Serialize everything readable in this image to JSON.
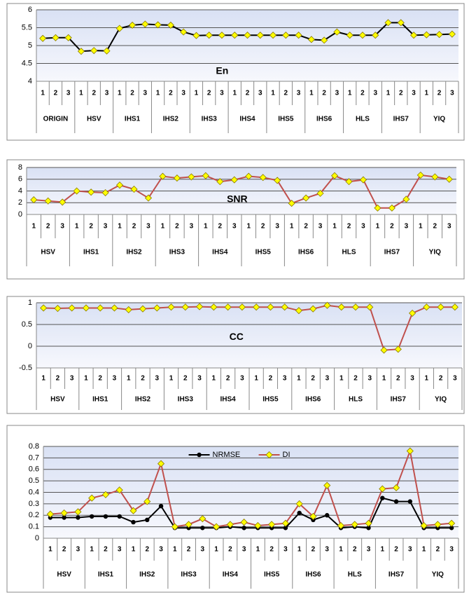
{
  "chart_data": [
    {
      "type": "line",
      "label": "En",
      "categories": [
        "1",
        "2",
        "3",
        "1",
        "2",
        "3",
        "1",
        "2",
        "3",
        "1",
        "2",
        "3",
        "1",
        "2",
        "3",
        "1",
        "2",
        "3",
        "1",
        "2",
        "3",
        "1",
        "2",
        "3",
        "1",
        "2",
        "3",
        "1",
        "2",
        "3",
        "1",
        "2",
        "3"
      ],
      "groups": [
        "ORIGIN",
        "HSV",
        "IHS1",
        "IHS2",
        "IHS3",
        "IHS4",
        "IHS5",
        "IHS6",
        "HLS",
        "IHS7",
        "YIQ"
      ],
      "values": [
        5.2,
        5.22,
        5.22,
        4.84,
        4.86,
        4.85,
        5.48,
        5.57,
        5.6,
        5.58,
        5.57,
        5.38,
        5.28,
        5.29,
        5.29,
        5.29,
        5.29,
        5.29,
        5.29,
        5.29,
        5.29,
        5.17,
        5.15,
        5.38,
        5.29,
        5.29,
        5.29,
        5.64,
        5.64,
        5.29,
        5.3,
        5.31,
        5.32
      ],
      "color": "#000000",
      "marker": "diamond",
      "marker_color": "#ffff00",
      "ylim": [
        4,
        6
      ],
      "yticks": [
        4,
        4.5,
        5,
        5.5,
        6
      ],
      "grid": true
    },
    {
      "type": "line",
      "label": "SNR",
      "categories": [
        "1",
        "2",
        "3",
        "1",
        "2",
        "3",
        "1",
        "2",
        "3",
        "1",
        "2",
        "3",
        "1",
        "2",
        "3",
        "1",
        "2",
        "3",
        "1",
        "2",
        "3",
        "1",
        "2",
        "3",
        "1",
        "2",
        "3",
        "1",
        "2",
        "3"
      ],
      "groups": [
        "HSV",
        "IHS1",
        "IHS2",
        "IHS3",
        "IHS4",
        "IHS5",
        "IHS6",
        "HLS",
        "IHS7",
        "YIQ"
      ],
      "values": [
        2.5,
        2.3,
        2.1,
        4.0,
        3.8,
        3.7,
        5.0,
        4.3,
        2.8,
        6.5,
        6.2,
        6.4,
        6.6,
        5.6,
        5.9,
        6.5,
        6.3,
        5.8,
        1.9,
        2.8,
        3.6,
        6.6,
        5.6,
        5.9,
        1.1,
        1.1,
        2.6,
        6.7,
        6.4,
        6.0
      ],
      "color": "#c0504d",
      "marker": "diamond",
      "marker_color": "#ffff00",
      "ylim": [
        0,
        8
      ],
      "yticks": [
        0,
        2,
        4,
        6,
        8
      ],
      "grid": true
    },
    {
      "type": "line",
      "label": "CC",
      "categories": [
        "1",
        "2",
        "3",
        "1",
        "2",
        "3",
        "1",
        "2",
        "3",
        "1",
        "2",
        "3",
        "1",
        "2",
        "3",
        "1",
        "2",
        "3",
        "1",
        "2",
        "3",
        "1",
        "2",
        "3",
        "1",
        "2",
        "3",
        "1",
        "2",
        "3"
      ],
      "groups": [
        "HSV",
        "IHS1",
        "IHS2",
        "IHS3",
        "IHS4",
        "IHS5",
        "IHS6",
        "HLS",
        "IHS7",
        "YIQ"
      ],
      "values": [
        0.88,
        0.87,
        0.88,
        0.88,
        0.88,
        0.88,
        0.84,
        0.86,
        0.88,
        0.9,
        0.9,
        0.91,
        0.9,
        0.9,
        0.9,
        0.9,
        0.9,
        0.9,
        0.82,
        0.86,
        0.94,
        0.9,
        0.9,
        0.9,
        -0.09,
        -0.07,
        0.76,
        0.9,
        0.9,
        0.9
      ],
      "color": "#c0504d",
      "marker": "diamond",
      "marker_color": "#ffff00",
      "ylim": [
        -0.5,
        1
      ],
      "yticks": [
        -0.5,
        0,
        0.5,
        1
      ],
      "grid": true
    },
    {
      "type": "line",
      "categories": [
        "1",
        "2",
        "3",
        "1",
        "2",
        "3",
        "1",
        "2",
        "3",
        "1",
        "2",
        "3",
        "1",
        "2",
        "3",
        "1",
        "2",
        "3",
        "1",
        "2",
        "3",
        "1",
        "2",
        "3",
        "1",
        "2",
        "3",
        "1",
        "2",
        "3"
      ],
      "groups": [
        "HSV",
        "IHS1",
        "IHS2",
        "IHS3",
        "IHS4",
        "IHS5",
        "IHS6",
        "HLS",
        "IHS7",
        "YIQ"
      ],
      "series": [
        {
          "name": "NRMSE",
          "color": "#000000",
          "marker": "circle",
          "marker_color": "#000000",
          "values": [
            0.18,
            0.18,
            0.18,
            0.19,
            0.19,
            0.19,
            0.14,
            0.16,
            0.28,
            0.09,
            0.09,
            0.09,
            0.09,
            0.1,
            0.09,
            0.09,
            0.09,
            0.09,
            0.22,
            0.16,
            0.2,
            0.09,
            0.1,
            0.09,
            0.35,
            0.32,
            0.32,
            0.09,
            0.09,
            0.09
          ]
        },
        {
          "name": "DI",
          "color": "#c0504d",
          "marker": "diamond",
          "marker_color": "#ffff00",
          "values": [
            0.21,
            0.22,
            0.23,
            0.35,
            0.38,
            0.42,
            0.24,
            0.32,
            0.65,
            0.1,
            0.12,
            0.17,
            0.1,
            0.12,
            0.14,
            0.11,
            0.12,
            0.13,
            0.3,
            0.19,
            0.46,
            0.11,
            0.12,
            0.13,
            0.43,
            0.44,
            0.76,
            0.11,
            0.12,
            0.13
          ]
        }
      ],
      "legend": "top",
      "ylim": [
        0,
        0.8
      ],
      "yticks": [
        0,
        0.1,
        0.2,
        0.3,
        0.4,
        0.5,
        0.6,
        0.7,
        0.8
      ],
      "grid": true
    }
  ]
}
